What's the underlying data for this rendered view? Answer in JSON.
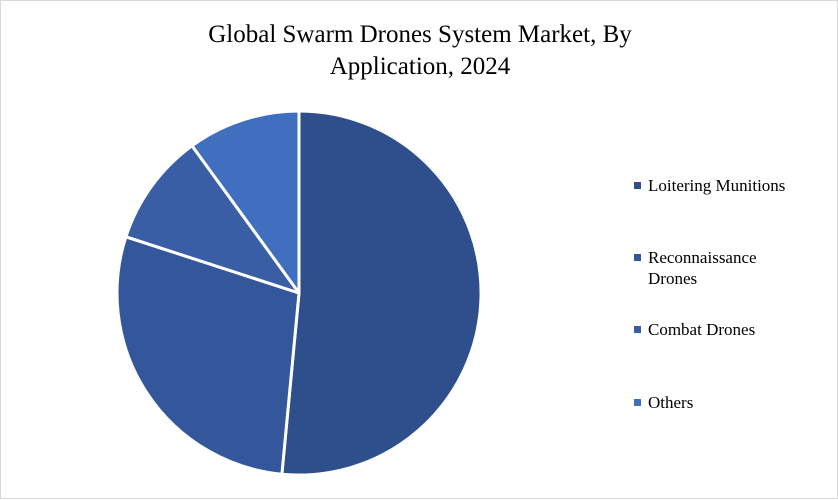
{
  "chart_data": {
    "type": "pie",
    "title_lines": [
      "Global Swarm Drones System Market, By",
      "Application, 2024"
    ],
    "slices": [
      {
        "name_lines": [
          "Loitering Munitions"
        ],
        "value": 51.5,
        "color": "#2e4f8c"
      },
      {
        "name_lines": [
          "Reconnaissance",
          "Drones"
        ],
        "value": 28.5,
        "color": "#34569a"
      },
      {
        "name_lines": [
          "Combat Drones"
        ],
        "value": 10.0,
        "color": "#3a5ea6"
      },
      {
        "name_lines": [
          "Others"
        ],
        "value": 10.0,
        "color": "#416fbf"
      }
    ],
    "start_angle_deg": 0,
    "direction": "clockwise",
    "legend_position": "right"
  }
}
